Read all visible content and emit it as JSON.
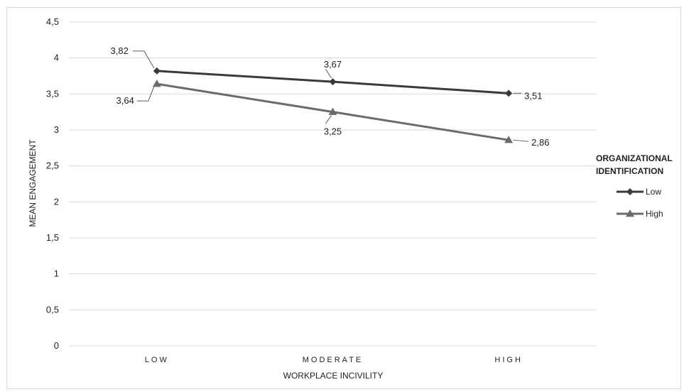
{
  "chart_data": {
    "type": "line",
    "categories": [
      "LOW",
      "MODERATE",
      "HIGH"
    ],
    "series": [
      {
        "name": "Low",
        "values": [
          3.82,
          3.67,
          3.51
        ],
        "labels": [
          "3,82",
          "3,67",
          "3,51"
        ],
        "color": "#3a3a3a",
        "marker": "diamond"
      },
      {
        "name": "High",
        "values": [
          3.64,
          3.25,
          2.86
        ],
        "labels": [
          "3,64",
          "3,25",
          "2,86"
        ],
        "color": "#6b6b6b",
        "marker": "triangle"
      }
    ],
    "xlabel": "WORKPLACE INCIVILITY",
    "ylabel": "MEAN ENGAGEMENT",
    "ylim": [
      0,
      4.5
    ],
    "yticks": [
      0,
      0.5,
      1,
      1.5,
      2,
      2.5,
      3,
      3.5,
      4,
      4.5
    ],
    "ytick_labels": [
      "0",
      "0,5",
      "1",
      "1,5",
      "2",
      "2,5",
      "3",
      "3,5",
      "4",
      "4,5"
    ],
    "grid": true,
    "legend": {
      "title_lines": [
        "ORGANIZATIONAL",
        "IDENTIFICATION"
      ],
      "placement": "right"
    }
  }
}
